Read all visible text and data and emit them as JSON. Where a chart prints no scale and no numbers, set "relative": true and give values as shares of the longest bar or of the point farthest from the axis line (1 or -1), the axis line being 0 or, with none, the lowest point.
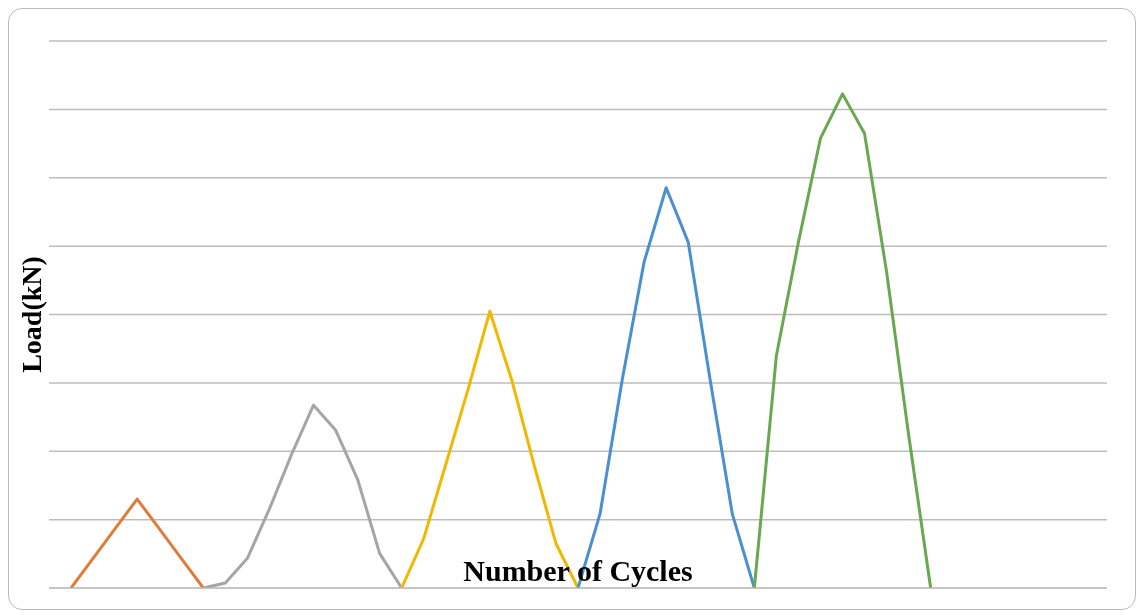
{
  "chart_data": {
    "type": "line",
    "relative": true,
    "xlabel": "Number of Cycles",
    "ylabel": "Load(kN)",
    "grid": "y",
    "legend": false,
    "marker": "none",
    "line_style": "solid",
    "categories": [
      null,
      null,
      null,
      null,
      null,
      null,
      null,
      null,
      null,
      null,
      null,
      null,
      null,
      null,
      null,
      null,
      null,
      null,
      null,
      null,
      null,
      null,
      null,
      null,
      null,
      null,
      null,
      null,
      null,
      null,
      null,
      null,
      null,
      null,
      null,
      null,
      null,
      null,
      null,
      null,
      null,
      null,
      null,
      null,
      null,
      null,
      null,
      null,
      null
    ],
    "series": [
      {
        "color": "#e07b39",
        "values": [
          null,
          0,
          0.06,
          0.12,
          0.18,
          0.12,
          0.06,
          0,
          null,
          null,
          null,
          null,
          null,
          null,
          null,
          null,
          null,
          null,
          null,
          null,
          null,
          null,
          null,
          null,
          null,
          null,
          null,
          null,
          null,
          null,
          null,
          null,
          null,
          null,
          null,
          null,
          null,
          null,
          null,
          null,
          null,
          null,
          null,
          null,
          null,
          null,
          null,
          null,
          null
        ]
      },
      {
        "color": "#a5a5a5",
        "values": [
          null,
          null,
          null,
          null,
          null,
          null,
          null,
          0,
          0.01,
          0.06,
          0.16,
          0.27,
          0.37,
          0.32,
          0.22,
          0.07,
          0,
          null,
          null,
          null,
          null,
          null,
          null,
          null,
          null,
          null,
          null,
          null,
          null,
          null,
          null,
          null,
          null,
          null,
          null,
          null,
          null,
          null,
          null,
          null,
          null,
          null,
          null,
          null,
          null,
          null,
          null,
          null,
          null
        ]
      },
      {
        "color": "#f0b800",
        "values": [
          null,
          null,
          null,
          null,
          null,
          null,
          null,
          null,
          null,
          null,
          null,
          null,
          null,
          null,
          null,
          null,
          0,
          0.1,
          0.25,
          0.4,
          0.56,
          0.42,
          0.25,
          0.09,
          0,
          null,
          null,
          null,
          null,
          null,
          null,
          null,
          null,
          null,
          null,
          null,
          null,
          null,
          null,
          null,
          null,
          null,
          null,
          null,
          null,
          null,
          null,
          null,
          null
        ]
      },
      {
        "color": "#4a8fd0",
        "values": [
          null,
          null,
          null,
          null,
          null,
          null,
          null,
          null,
          null,
          null,
          null,
          null,
          null,
          null,
          null,
          null,
          null,
          null,
          null,
          null,
          null,
          null,
          null,
          null,
          0,
          0.15,
          0.42,
          0.66,
          0.81,
          0.7,
          0.42,
          0.15,
          0,
          null,
          null,
          null,
          null,
          null,
          null,
          null,
          null,
          null,
          null,
          null,
          null,
          null,
          null,
          null,
          null
        ]
      },
      {
        "color": "#6aa84f",
        "values": [
          null,
          null,
          null,
          null,
          null,
          null,
          null,
          null,
          null,
          null,
          null,
          null,
          null,
          null,
          null,
          null,
          null,
          null,
          null,
          null,
          null,
          null,
          null,
          null,
          null,
          null,
          null,
          null,
          null,
          null,
          null,
          null,
          0,
          0.47,
          0.7,
          0.91,
          1,
          0.92,
          0.64,
          0.31,
          0,
          null,
          null,
          null,
          null,
          null,
          null,
          null,
          null
        ]
      }
    ]
  }
}
